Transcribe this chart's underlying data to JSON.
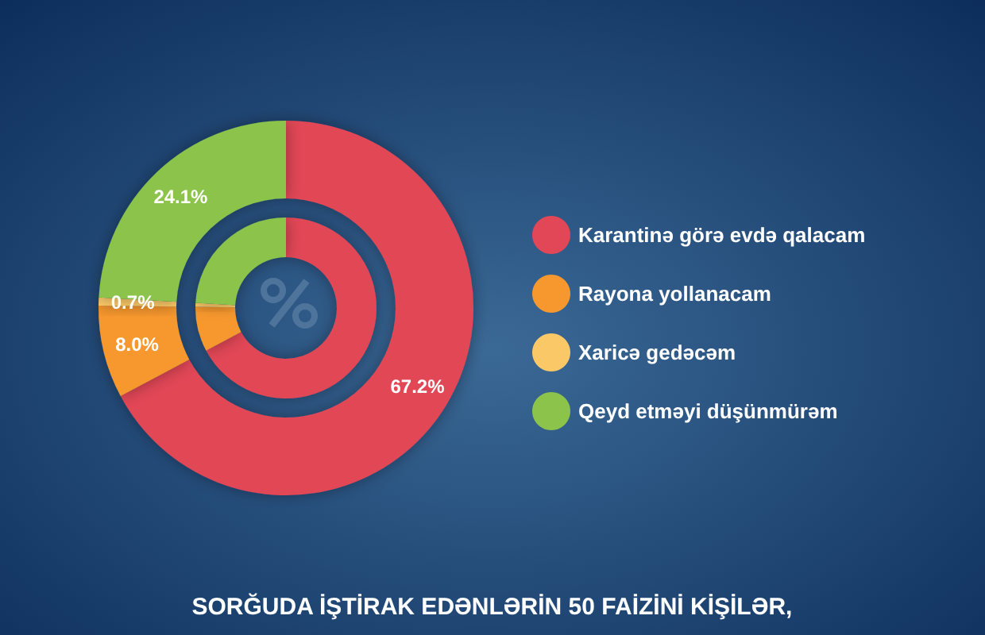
{
  "chart_data": {
    "type": "donut",
    "categories": [
      "Karantinə görə evdə qalacam",
      "Rayona yollanacam",
      "Xaricə gedəcəm",
      "Qeyd etməyi düşünmürəm"
    ],
    "colors": [
      "#e24757",
      "#f7982f",
      "#fbc868",
      "#8cc34b"
    ],
    "series": [
      {
        "values": [
          67.2,
          8.0,
          0.7,
          24.1
        ],
        "value_labels": [
          "67.2%",
          "8.0%",
          "0.7%",
          "24.1%"
        ]
      },
      {
        "values": [
          67.2,
          8.0,
          0.7,
          24.1
        ]
      }
    ],
    "legend": "right",
    "annotations": [
      "SORĞUDA İŞTİRAK EDƏNLƏRİN 50 FAİZİNİ KİŞİLƏR,"
    ]
  }
}
